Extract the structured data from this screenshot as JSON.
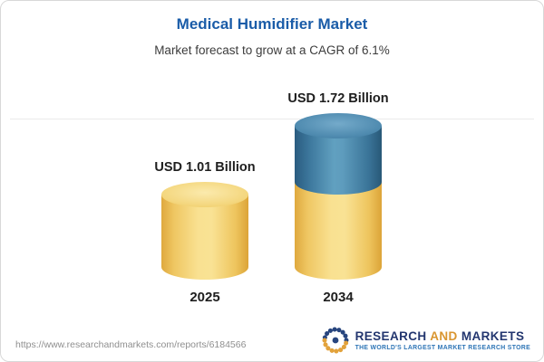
{
  "header": {
    "title": "Medical Humidifier Market",
    "subtitle": "Market forecast to grow at a CAGR of 6.1%"
  },
  "chart_data": {
    "type": "bar",
    "title": "Medical Humidifier Market",
    "subtitle": "Market forecast to grow at a CAGR of 6.1%",
    "cagr_percent": 6.1,
    "unit": "USD Billion",
    "categories": [
      "2025",
      "2034"
    ],
    "values": [
      1.01,
      1.72
    ],
    "value_labels": [
      "USD 1.01 Billion",
      "USD 1.72 Billion"
    ],
    "series": [
      {
        "name": "baseline-yellow-segment",
        "values": [
          1.01,
          1.01
        ]
      },
      {
        "name": "growth-blue-segment",
        "values": [
          0,
          0.71
        ]
      }
    ],
    "ylim": [
      0,
      2
    ],
    "grid": "single faint top gridline",
    "legend": "none"
  },
  "colors": {
    "title_blue": "#1A5CA8",
    "bar_yellow": "#F2CE68",
    "bar_blue": "#3D7CA8",
    "logo_navy": "#23366F",
    "logo_gold": "#D9952F",
    "tagline_blue": "#2E75B6"
  },
  "footer": {
    "url": "https://www.researchandmarkets.com/reports/6184566",
    "logo_words": [
      "RESEARCH",
      "AND",
      "MARKETS"
    ],
    "logo_tagline": "THE WORLD'S LARGEST MARKET RESEARCH STORE"
  }
}
